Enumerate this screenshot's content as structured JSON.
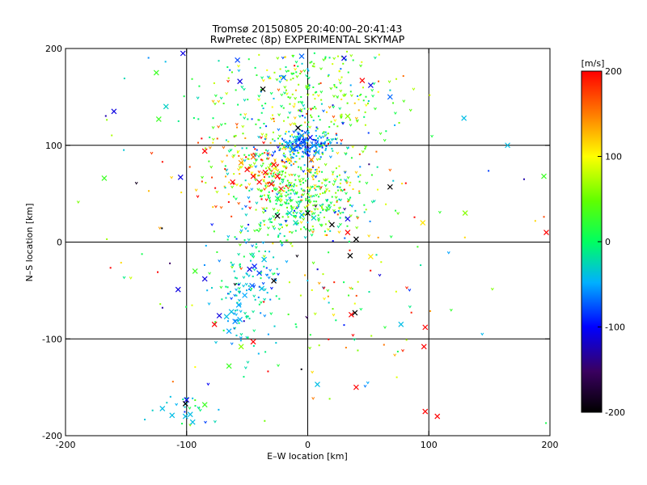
{
  "chart_data": {
    "type": "scatter",
    "title": "Tromsø 20150805 20:40:00–20:41:43",
    "subtitle": "RwPretec (8p) EXPERIMENTAL SKYMAP",
    "xlabel": "E–W location [km]",
    "ylabel": "N–S location [km]",
    "xlim": [
      -200,
      200
    ],
    "ylim": [
      -200,
      200
    ],
    "x_ticks": [
      -200,
      -100,
      0,
      100,
      200
    ],
    "y_ticks": [
      -200,
      -100,
      0,
      100,
      200
    ],
    "grid_lines_x": [
      -100,
      0,
      100
    ],
    "grid_lines_y": [
      -100,
      0,
      100
    ],
    "grid": true,
    "colorbar": {
      "label": "[m/s]",
      "range": [
        -200,
        200
      ],
      "ticks": [
        200,
        100,
        0,
        -100,
        -200
      ]
    },
    "points_large": [
      {
        "x": -160,
        "y": 135,
        "v": -110
      },
      {
        "x": -125,
        "y": 175,
        "v": 30
      },
      {
        "x": -123,
        "y": 127,
        "v": 30
      },
      {
        "x": -117,
        "y": 140,
        "v": -30
      },
      {
        "x": -105,
        "y": 67,
        "v": -110
      },
      {
        "x": -168,
        "y": 66,
        "v": 30
      },
      {
        "x": -103,
        "y": 195,
        "v": -110
      },
      {
        "x": -58,
        "y": 188,
        "v": -80
      },
      {
        "x": -56,
        "y": 166,
        "v": -110
      },
      {
        "x": -37,
        "y": 158,
        "v": -200
      },
      {
        "x": -20,
        "y": 170,
        "v": -70
      },
      {
        "x": -5,
        "y": 192,
        "v": -70
      },
      {
        "x": 30,
        "y": 190,
        "v": -110
      },
      {
        "x": 45,
        "y": 167,
        "v": 200
      },
      {
        "x": 52,
        "y": 162,
        "v": -110
      },
      {
        "x": 68,
        "y": 150,
        "v": -70
      },
      {
        "x": 33,
        "y": 130,
        "v": 60
      },
      {
        "x": 129,
        "y": 128,
        "v": -40
      },
      {
        "x": -85,
        "y": 94,
        "v": 200
      },
      {
        "x": -50,
        "y": 75,
        "v": 200
      },
      {
        "x": -45,
        "y": 68,
        "v": 200
      },
      {
        "x": -40,
        "y": 62,
        "v": 200
      },
      {
        "x": -35,
        "y": 72,
        "v": 200
      },
      {
        "x": -28,
        "y": 80,
        "v": 200
      },
      {
        "x": -30,
        "y": 60,
        "v": 200
      },
      {
        "x": -25,
        "y": 68,
        "v": 200
      },
      {
        "x": -22,
        "y": 55,
        "v": 180
      },
      {
        "x": -55,
        "y": 82,
        "v": 140
      },
      {
        "x": -62,
        "y": 62,
        "v": 200
      },
      {
        "x": -45,
        "y": 88,
        "v": 160
      },
      {
        "x": -15,
        "y": 85,
        "v": 120
      },
      {
        "x": -8,
        "y": 100,
        "v": -90
      },
      {
        "x": -3,
        "y": 104,
        "v": -80
      },
      {
        "x": 0,
        "y": 95,
        "v": -75
      },
      {
        "x": -12,
        "y": 96,
        "v": -70
      },
      {
        "x": 5,
        "y": 100,
        "v": -60
      },
      {
        "x": -5,
        "y": 110,
        "v": -60
      },
      {
        "x": 2,
        "y": 108,
        "v": -100
      },
      {
        "x": -16,
        "y": 102,
        "v": -50
      },
      {
        "x": 8,
        "y": 93,
        "v": -40
      },
      {
        "x": -8,
        "y": 118,
        "v": -200
      },
      {
        "x": 3,
        "y": 85,
        "v": 150
      },
      {
        "x": -25,
        "y": 45,
        "v": 10
      },
      {
        "x": -15,
        "y": 30,
        "v": -30
      },
      {
        "x": -5,
        "y": 28,
        "v": -40
      },
      {
        "x": 5,
        "y": 25,
        "v": -30
      },
      {
        "x": -10,
        "y": 20,
        "v": -20
      },
      {
        "x": 0,
        "y": 30,
        "v": -200
      },
      {
        "x": -25,
        "y": 27,
        "v": -200
      },
      {
        "x": 20,
        "y": 18,
        "v": -200
      },
      {
        "x": 33,
        "y": 24,
        "v": -110
      },
      {
        "x": 40,
        "y": 3,
        "v": -200
      },
      {
        "x": 35,
        "y": -14,
        "v": -200
      },
      {
        "x": 68,
        "y": 57,
        "v": -200
      },
      {
        "x": 95,
        "y": 20,
        "v": 110
      },
      {
        "x": 130,
        "y": 30,
        "v": 60
      },
      {
        "x": 195,
        "y": 68,
        "v": 30
      },
      {
        "x": 197,
        "y": 10,
        "v": 200
      },
      {
        "x": 165,
        "y": 100,
        "v": -40
      },
      {
        "x": 33,
        "y": 10,
        "v": 200
      },
      {
        "x": 52,
        "y": -15,
        "v": 110
      },
      {
        "x": -48,
        "y": -28,
        "v": -110
      },
      {
        "x": -44,
        "y": -25,
        "v": -90
      },
      {
        "x": -40,
        "y": -32,
        "v": -80
      },
      {
        "x": -46,
        "y": -45,
        "v": -70
      },
      {
        "x": -52,
        "y": -55,
        "v": -50
      },
      {
        "x": -57,
        "y": -65,
        "v": -50
      },
      {
        "x": -63,
        "y": -72,
        "v": -40
      },
      {
        "x": -56,
        "y": -80,
        "v": -50
      },
      {
        "x": -60,
        "y": -82,
        "v": -60
      },
      {
        "x": -67,
        "y": -77,
        "v": -40
      },
      {
        "x": -73,
        "y": -76,
        "v": -110
      },
      {
        "x": -77,
        "y": -85,
        "v": 200
      },
      {
        "x": -65,
        "y": -92,
        "v": -50
      },
      {
        "x": -36,
        "y": -18,
        "v": -40
      },
      {
        "x": -38,
        "y": -48,
        "v": -40
      },
      {
        "x": -28,
        "y": -40,
        "v": -200
      },
      {
        "x": -85,
        "y": -38,
        "v": -110
      },
      {
        "x": -93,
        "y": -30,
        "v": 30
      },
      {
        "x": -107,
        "y": -49,
        "v": -110
      },
      {
        "x": -45,
        "y": -103,
        "v": 200
      },
      {
        "x": -55,
        "y": -108,
        "v": 60
      },
      {
        "x": -65,
        "y": -128,
        "v": 30
      },
      {
        "x": 36,
        "y": -75,
        "v": 200
      },
      {
        "x": 39,
        "y": -73,
        "v": -200
      },
      {
        "x": 77,
        "y": -85,
        "v": -40
      },
      {
        "x": 97,
        "y": -88,
        "v": 200
      },
      {
        "x": 96,
        "y": -108,
        "v": 200
      },
      {
        "x": 8,
        "y": -147,
        "v": -40
      },
      {
        "x": 40,
        "y": -150,
        "v": 200
      },
      {
        "x": 97,
        "y": -175,
        "v": 200
      },
      {
        "x": 107,
        "y": -180,
        "v": 200
      },
      {
        "x": -85,
        "y": -168,
        "v": 30
      },
      {
        "x": -100,
        "y": -163,
        "v": -110
      },
      {
        "x": -101,
        "y": -167,
        "v": -200
      },
      {
        "x": -120,
        "y": -172,
        "v": -40
      },
      {
        "x": -97,
        "y": -178,
        "v": -40
      },
      {
        "x": -101,
        "y": -180,
        "v": -40
      },
      {
        "x": -112,
        "y": -179,
        "v": -40
      },
      {
        "x": -95,
        "y": -186,
        "v": -40
      }
    ]
  }
}
